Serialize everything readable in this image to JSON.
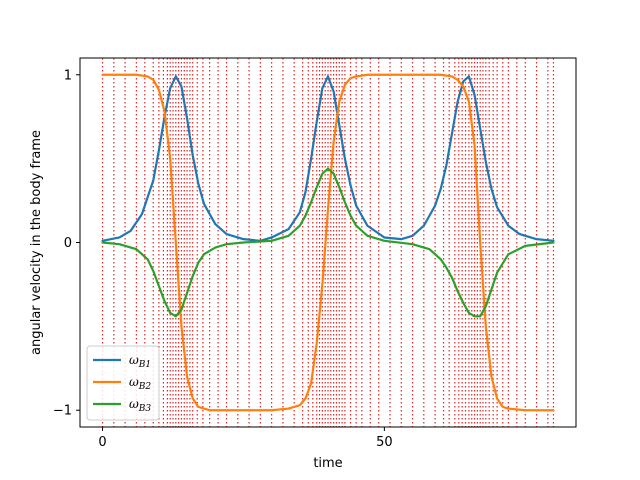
{
  "chart_data": {
    "type": "line",
    "title": "",
    "xlabel": "time",
    "ylabel": "angular velocity in the body frame",
    "xlim": [
      -4,
      84
    ],
    "ylim": [
      -1.1,
      1.1
    ],
    "x_ticks": [
      0,
      50
    ],
    "y_ticks": [
      -1,
      0,
      1
    ],
    "x_tick_labels": [
      "0",
      "50"
    ],
    "y_tick_labels": [
      "−1",
      "0",
      "1"
    ],
    "grid": false,
    "legend_position": "lower-left",
    "series": [
      {
        "name": "ω_B1",
        "legend_main": "ω",
        "legend_sub": "B1",
        "color": "#1f77b4",
        "x": [
          0,
          3,
          5,
          7,
          9,
          10,
          11,
          12,
          13,
          14,
          15,
          16,
          17,
          18,
          20,
          22,
          25,
          28,
          30,
          33,
          35,
          36,
          37,
          38,
          39,
          40,
          41,
          42,
          43,
          44,
          45,
          47,
          50,
          53,
          55,
          57,
          59,
          60,
          61,
          62,
          63,
          64,
          65,
          66,
          67,
          68,
          69,
          70,
          72,
          74,
          77,
          80
        ],
        "y": [
          0.01,
          0.03,
          0.07,
          0.17,
          0.37,
          0.55,
          0.75,
          0.92,
          0.99,
          0.93,
          0.74,
          0.52,
          0.35,
          0.23,
          0.11,
          0.05,
          0.02,
          0.01,
          0.03,
          0.08,
          0.18,
          0.3,
          0.5,
          0.72,
          0.92,
          0.99,
          0.9,
          0.7,
          0.5,
          0.34,
          0.22,
          0.1,
          0.03,
          0.02,
          0.04,
          0.1,
          0.22,
          0.32,
          0.46,
          0.65,
          0.84,
          0.96,
          0.99,
          0.88,
          0.68,
          0.48,
          0.32,
          0.21,
          0.1,
          0.05,
          0.02,
          0.01
        ]
      },
      {
        "name": "ω_B2",
        "legend_main": "ω",
        "legend_sub": "B2",
        "color": "#ff7f0e",
        "x": [
          0,
          3,
          6,
          8,
          9,
          10,
          11,
          12,
          13,
          14,
          15,
          16,
          17,
          18,
          19,
          20,
          22,
          25,
          30,
          33,
          35,
          36,
          37,
          38,
          39,
          40,
          41,
          42,
          43,
          44,
          45,
          47,
          50,
          55,
          60,
          62,
          63,
          64,
          65,
          66,
          67,
          68,
          69,
          70,
          71,
          72,
          75,
          80
        ],
        "y": [
          1.0,
          1.0,
          1.0,
          0.99,
          0.97,
          0.91,
          0.78,
          0.5,
          0.0,
          -0.5,
          -0.8,
          -0.93,
          -0.98,
          -0.99,
          -1.0,
          -1.0,
          -1.0,
          -1.0,
          -1.0,
          -0.99,
          -0.97,
          -0.93,
          -0.84,
          -0.6,
          -0.25,
          0.2,
          0.6,
          0.84,
          0.94,
          0.98,
          0.99,
          1.0,
          1.0,
          1.0,
          1.0,
          0.99,
          0.97,
          0.93,
          0.84,
          0.58,
          0.0,
          -0.5,
          -0.8,
          -0.93,
          -0.98,
          -0.99,
          -1.0,
          -1.0
        ]
      },
      {
        "name": "ω_B3",
        "legend_main": "ω",
        "legend_sub": "B3",
        "color": "#2ca02c",
        "x": [
          0,
          3,
          6,
          8,
          9,
          10,
          11,
          12,
          13,
          14,
          15,
          16,
          17,
          18,
          20,
          22,
          25,
          30,
          33,
          35,
          36,
          37,
          38,
          39,
          40,
          41,
          42,
          43,
          44,
          45,
          47,
          50,
          55,
          58,
          60,
          61,
          62,
          63,
          64,
          65,
          66,
          67,
          68,
          69,
          70,
          72,
          75,
          80
        ],
        "y": [
          0.0,
          -0.01,
          -0.04,
          -0.1,
          -0.17,
          -0.26,
          -0.35,
          -0.42,
          -0.44,
          -0.4,
          -0.3,
          -0.2,
          -0.12,
          -0.07,
          -0.03,
          -0.01,
          0.0,
          0.01,
          0.04,
          0.1,
          0.16,
          0.24,
          0.33,
          0.41,
          0.44,
          0.41,
          0.33,
          0.24,
          0.16,
          0.1,
          0.04,
          0.01,
          -0.01,
          -0.04,
          -0.1,
          -0.15,
          -0.21,
          -0.29,
          -0.36,
          -0.42,
          -0.44,
          -0.44,
          -0.38,
          -0.28,
          -0.18,
          -0.07,
          -0.02,
          0.0
        ]
      }
    ],
    "vertical_markers": {
      "color": "#d62728",
      "style": "dotted",
      "x": [
        0,
        2,
        4,
        6,
        7.5,
        9,
        10,
        10.8,
        11.5,
        12,
        12.5,
        13,
        13.5,
        14,
        14.5,
        15,
        15.5,
        16,
        16.8,
        17.8,
        19,
        20.5,
        22,
        24,
        26,
        28,
        30,
        32,
        34,
        35.5,
        36.5,
        37.3,
        38,
        38.5,
        39,
        39.5,
        40,
        40.5,
        41,
        41.5,
        42,
        42.5,
        43,
        44,
        45,
        46,
        47.5,
        49,
        51,
        53,
        55,
        57,
        59,
        60.5,
        61.5,
        62.5,
        63.2,
        63.8,
        64.4,
        65,
        65.5,
        66,
        66.5,
        67,
        67.5,
        68,
        68.6,
        69.3,
        70,
        71,
        72,
        73.5,
        75,
        77,
        79,
        80
      ]
    }
  }
}
